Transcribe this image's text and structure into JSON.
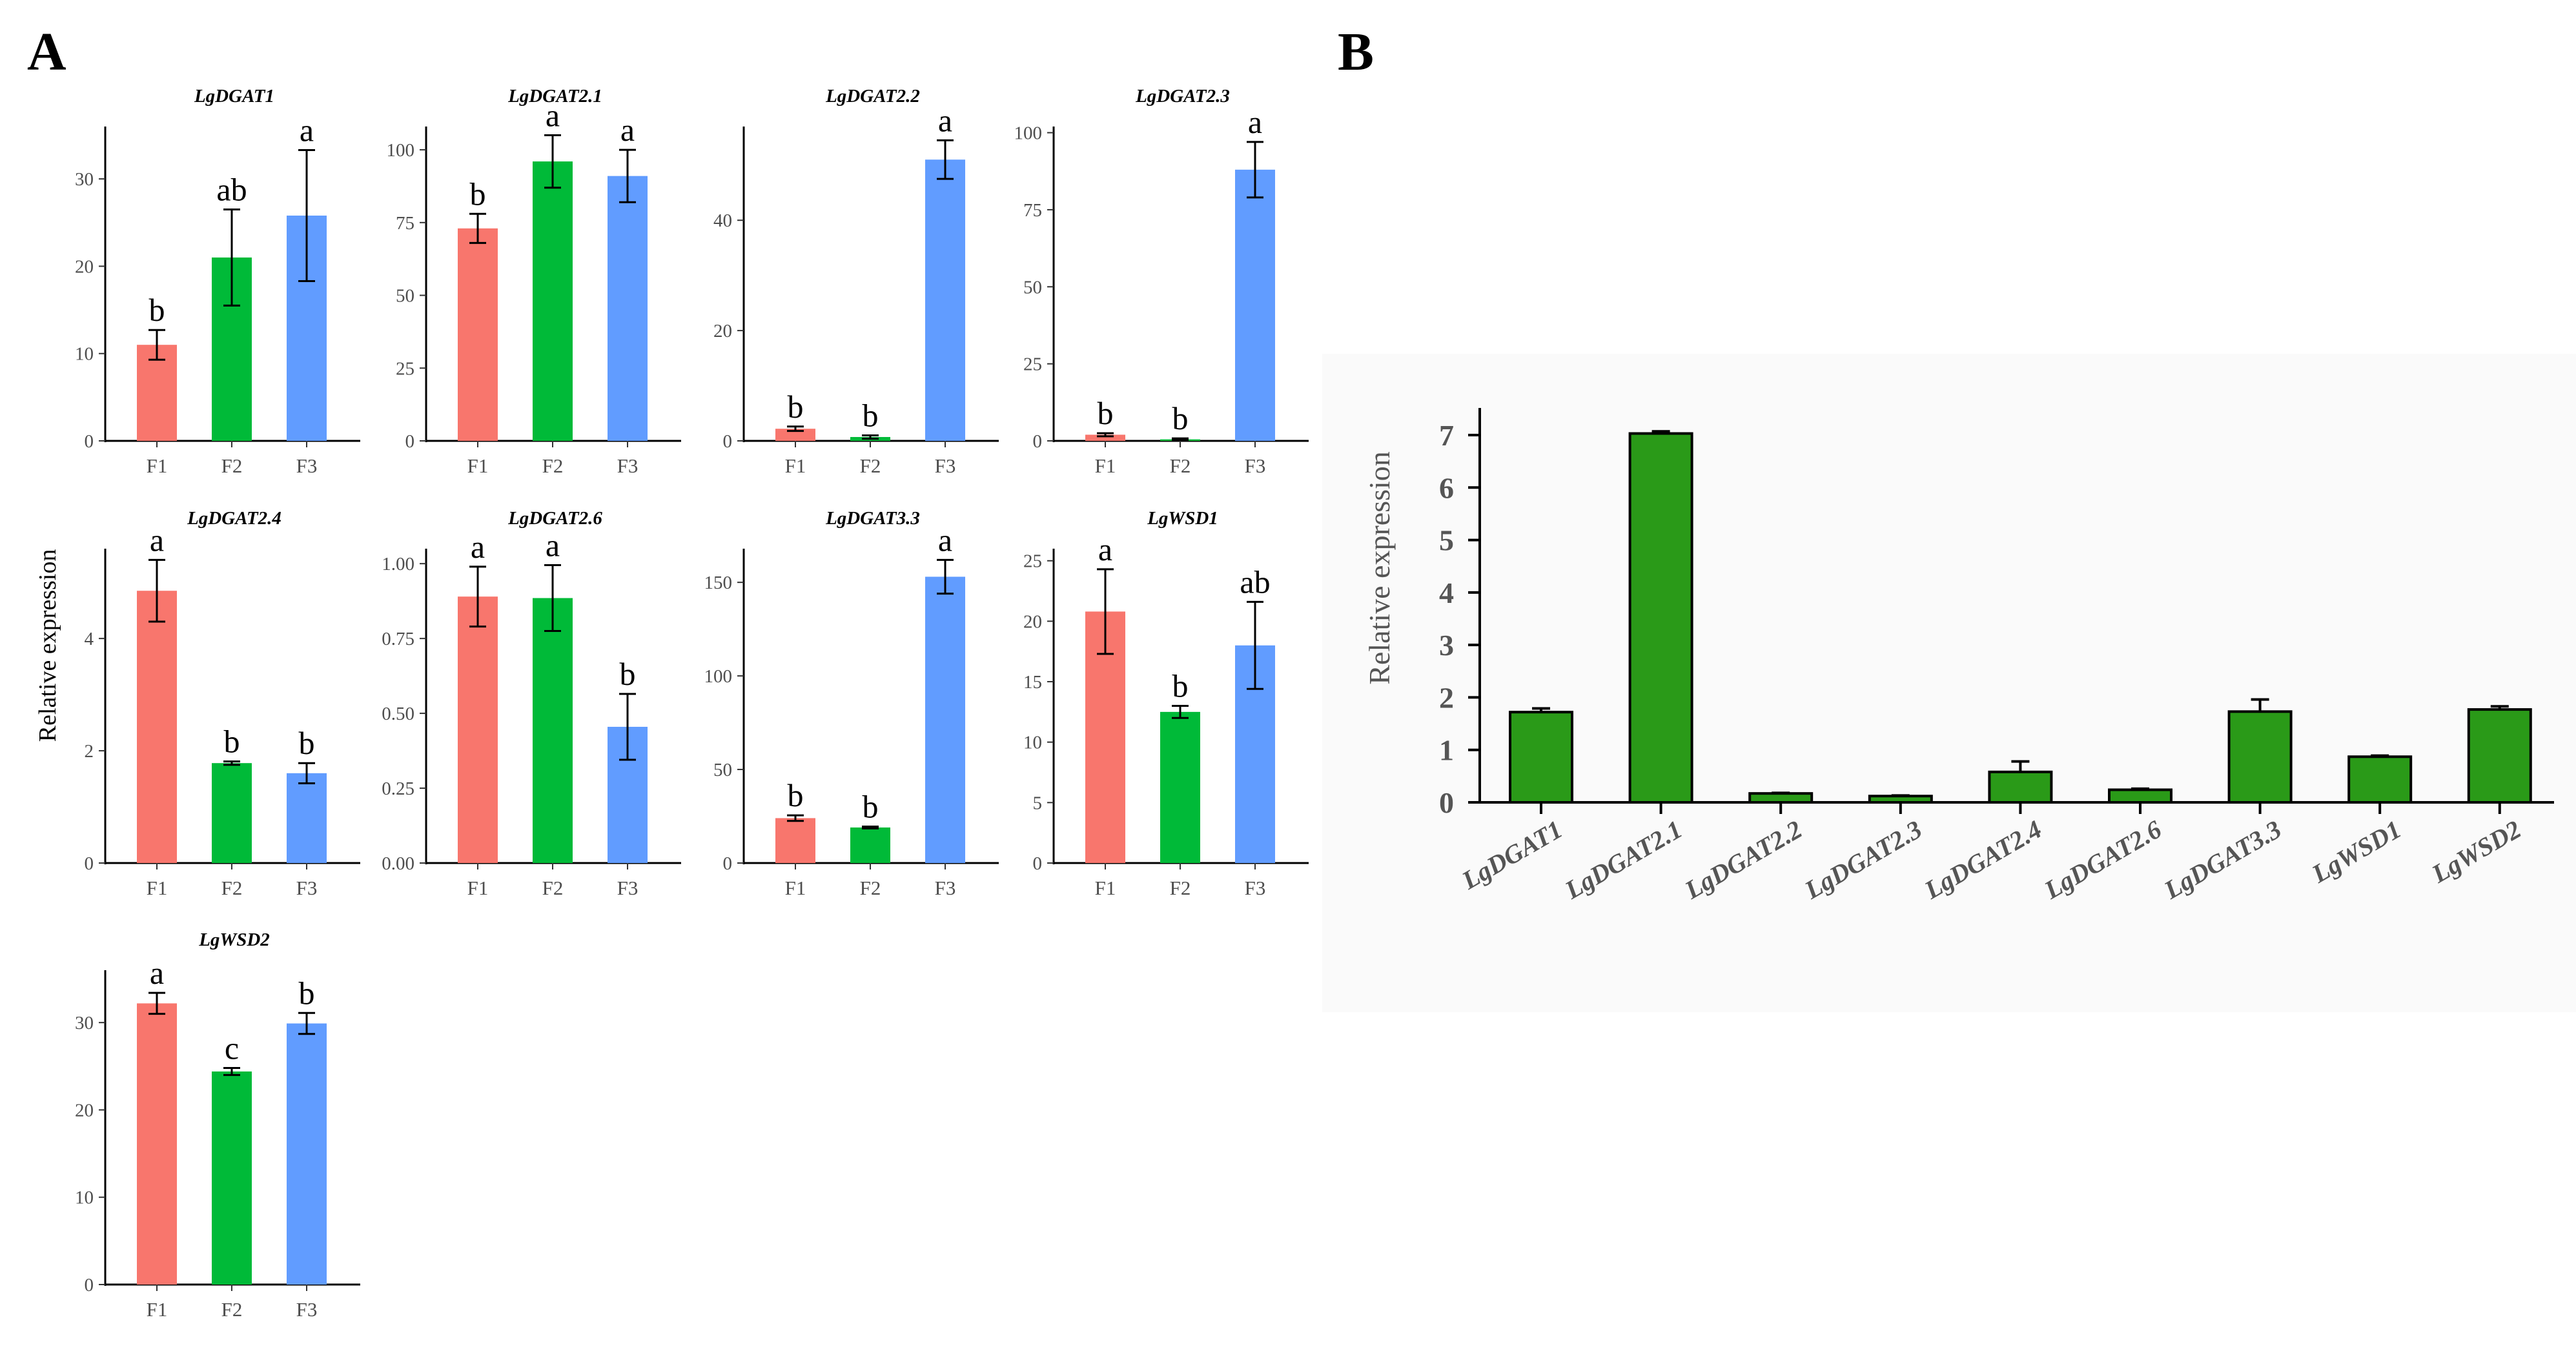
{
  "panels": {
    "a_label": "A",
    "b_label": "B"
  },
  "colors": {
    "F1": "#F8766D",
    "F2": "#00BA38",
    "F3": "#619CFF",
    "panel_b_bar": "#2A9A18",
    "panel_b_bg": "#FAFAFA"
  },
  "chart_data": [
    {
      "type": "bar",
      "panel": "A",
      "ylabel": "Relative expression",
      "xlabel": "",
      "categories": [
        "F1",
        "F2",
        "F3"
      ],
      "subplots": [
        {
          "title": "LgDGAT1",
          "values": [
            11,
            21,
            25.8
          ],
          "errors": [
            1.7,
            5.5,
            7.5
          ],
          "letters": [
            "b",
            "ab",
            "a"
          ],
          "ylim": [
            0,
            36
          ],
          "yticks": [
            0,
            10,
            20,
            30
          ]
        },
        {
          "title": "LgDGAT2.1",
          "values": [
            73,
            96,
            91
          ],
          "errors": [
            5,
            9,
            9
          ],
          "letters": [
            "b",
            "a",
            "a"
          ],
          "ylim": [
            0,
            108
          ],
          "yticks": [
            0,
            25,
            50,
            75,
            100
          ]
        },
        {
          "title": "LgDGAT2.2",
          "values": [
            2.2,
            0.7,
            51
          ],
          "errors": [
            0.4,
            0.3,
            3.5
          ],
          "letters": [
            "b",
            "b",
            "a"
          ],
          "ylim": [
            0,
            57
          ],
          "yticks": [
            0,
            20,
            40
          ]
        },
        {
          "title": "LgDGAT2.3",
          "values": [
            2,
            0.5,
            88
          ],
          "errors": [
            0.5,
            0.3,
            9
          ],
          "letters": [
            "b",
            "b",
            "a"
          ],
          "ylim": [
            0,
            102
          ],
          "yticks": [
            0,
            25,
            50,
            75,
            100
          ]
        },
        {
          "title": "LgDGAT2.4",
          "values": [
            4.85,
            1.78,
            1.6
          ],
          "errors": [
            0.55,
            0.03,
            0.18
          ],
          "letters": [
            "a",
            "b",
            "b"
          ],
          "ylim": [
            0,
            5.6
          ],
          "yticks": [
            0,
            2,
            4
          ]
        },
        {
          "title": "LgDGAT2.6",
          "values": [
            0.89,
            0.885,
            0.455
          ],
          "errors": [
            0.1,
            0.11,
            0.11
          ],
          "letters": [
            "a",
            "a",
            "b"
          ],
          "ylim": [
            0,
            1.05
          ],
          "yticks": [
            0,
            0.25,
            0.5,
            0.75,
            1.0
          ],
          "ytick_labels": [
            "0.00",
            "0.25",
            "0.50",
            "0.75",
            "1.00"
          ]
        },
        {
          "title": "LgDGAT3.3",
          "values": [
            24,
            19,
            153
          ],
          "errors": [
            1.5,
            0.5,
            9
          ],
          "letters": [
            "b",
            "b",
            "a"
          ],
          "ylim": [
            0,
            168
          ],
          "yticks": [
            0,
            50,
            100,
            150
          ]
        },
        {
          "title": "LgWSD1",
          "values": [
            20.8,
            12.5,
            18
          ],
          "errors": [
            3.5,
            0.5,
            3.6
          ],
          "letters": [
            "a",
            "b",
            "ab"
          ],
          "ylim": [
            0,
            26
          ],
          "yticks": [
            0,
            5,
            10,
            15,
            20,
            25
          ]
        },
        {
          "title": "LgWSD2",
          "values": [
            32.2,
            24.4,
            29.9
          ],
          "errors": [
            1.2,
            0.4,
            1.2
          ],
          "letters": [
            "a",
            "c",
            "b"
          ],
          "ylim": [
            0,
            36
          ],
          "yticks": [
            0,
            10,
            20,
            30
          ]
        }
      ]
    },
    {
      "type": "bar",
      "panel": "B",
      "ylabel": "Relative expression",
      "xlabel": "",
      "categories": [
        "LgDGAT1",
        "LgDGAT2.1",
        "LgDGAT2.2",
        "LgDGAT2.3",
        "LgDGAT2.4",
        "LgDGAT2.6",
        "LgDGAT3.3",
        "LgWSD1",
        "LgWSD2"
      ],
      "values": [
        1.72,
        7.03,
        0.17,
        0.12,
        0.58,
        0.24,
        1.73,
        0.87,
        1.77
      ],
      "errors": [
        0.07,
        0.04,
        0.01,
        0.01,
        0.2,
        0.02,
        0.23,
        0.02,
        0.06
      ],
      "ylim": [
        0,
        7.5
      ],
      "yticks": [
        0,
        1,
        2,
        3,
        4,
        5,
        6,
        7
      ]
    }
  ]
}
